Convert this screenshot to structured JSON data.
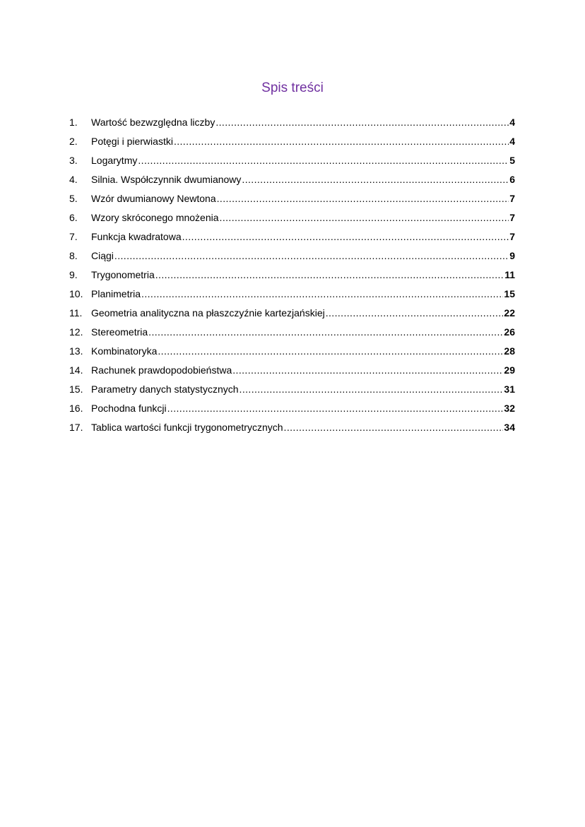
{
  "title": "Spis treści",
  "colors": {
    "title": "#7030a0"
  },
  "entries": [
    {
      "num": "1.",
      "label": "Wartość bezwzględna liczby",
      "page": "4"
    },
    {
      "num": "2.",
      "label": "Potęgi i pierwiastki",
      "page": "4"
    },
    {
      "num": "3.",
      "label": "Logarytmy",
      "page": "5"
    },
    {
      "num": "4.",
      "label": "Silnia. Współczynnik dwumianowy",
      "page": "6"
    },
    {
      "num": "5.",
      "label": "Wzór dwumianowy Newtona",
      "page": "7"
    },
    {
      "num": "6.",
      "label": "Wzory skróconego mnożenia",
      "page": "7"
    },
    {
      "num": "7.",
      "label": "Funkcja kwadratowa",
      "page": "7"
    },
    {
      "num": "8.",
      "label": "Ciągi",
      "page": "9"
    },
    {
      "num": "9.",
      "label": "Trygonometria",
      "page": "11"
    },
    {
      "num": "10.",
      "label": "Planimetria",
      "page": "15"
    },
    {
      "num": "11.",
      "label": "Geometria analityczna na płaszczyźnie kartezjańskiej",
      "page": "22"
    },
    {
      "num": "12.",
      "label": "Stereometria",
      "page": "26"
    },
    {
      "num": "13.",
      "label": "Kombinatoryka",
      "page": "28"
    },
    {
      "num": "14.",
      "label": "Rachunek prawdopodobieństwa",
      "page": "29"
    },
    {
      "num": "15.",
      "label": "Parametry danych statystycznych",
      "page": "31"
    },
    {
      "num": "16.",
      "label": "Pochodna funkcji",
      "page": "32"
    },
    {
      "num": "17.",
      "label": "Tablica wartości funkcji trygonometrycznych",
      "page": "34"
    }
  ]
}
